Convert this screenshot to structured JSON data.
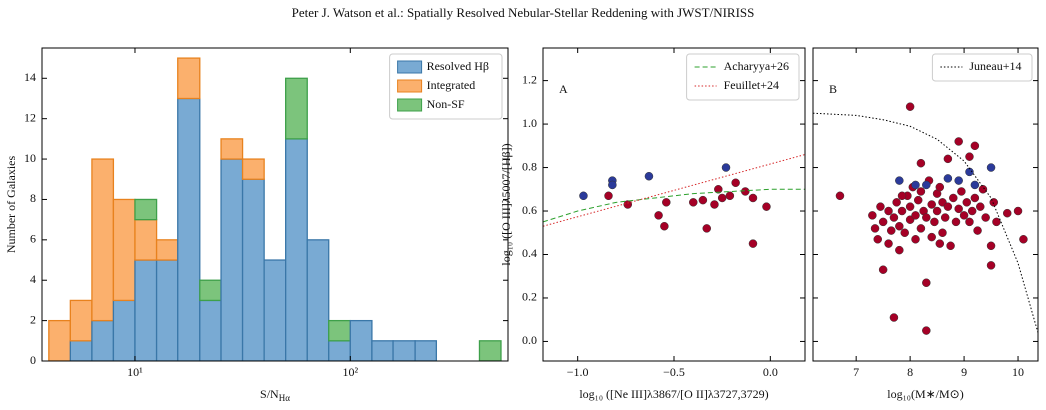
{
  "page_header": "Peter J. Watson et al.: Spatially Resolved Nebular-Stellar Reddening with JWST/NIRISS",
  "chart_data": [
    {
      "type": "histogram",
      "xscale": "log",
      "xlabel": "S/N",
      "xlabel_sub": "Hα",
      "ylabel": "Number of Galaxies",
      "bins": [
        3.98,
        5.01,
        6.31,
        7.94,
        10,
        12.6,
        15.8,
        20,
        25.1,
        31.6,
        39.8,
        50.1,
        63.1,
        79.4,
        100,
        126,
        158,
        200,
        251,
        316,
        398,
        501
      ],
      "series": [
        {
          "name": "Resolved Hβ",
          "color": "#79aad3",
          "edgecolor": "#3a77a8",
          "values": [
            0,
            1,
            2,
            3,
            5,
            5,
            13,
            3,
            10,
            9,
            5,
            11,
            6,
            1,
            2,
            1,
            1,
            1,
            0,
            0,
            0
          ]
        },
        {
          "name": "Integrated",
          "color": "#fbb06d",
          "edgecolor": "#e8821e",
          "values": [
            2,
            2,
            8,
            5,
            2,
            1,
            2,
            0,
            1,
            1,
            0,
            0,
            0,
            0,
            0,
            0,
            0,
            0,
            0,
            0,
            0
          ]
        },
        {
          "name": "Non-SF",
          "color": "#7cc47c",
          "edgecolor": "#3ea04a",
          "values": [
            0,
            0,
            0,
            0,
            1,
            0,
            0,
            1,
            0,
            0,
            0,
            3,
            0,
            1,
            0,
            0,
            0,
            0,
            0,
            0,
            1
          ]
        }
      ],
      "xlim": [
        3.7,
        540
      ],
      "xticks": [
        {
          "value": 10,
          "label": "10¹"
        },
        {
          "value": 100,
          "label": "10²"
        }
      ],
      "ylim": [
        0,
        15.5
      ],
      "yticks": [
        0,
        2,
        4,
        6,
        8,
        10,
        12,
        14
      ],
      "legend": "upper right"
    },
    {
      "type": "scatter",
      "panel_label": "A",
      "xlabel": "log₁₀ ([Ne III]λ3867/[O II]λ3727,3729)",
      "ylabel": "log₁₀ ([O III]λ5007/[Hβ])",
      "series": [
        {
          "color": "#a50026",
          "x": [
            -0.84,
            -0.74,
            -0.58,
            -0.55,
            -0.54,
            -0.4,
            -0.35,
            -0.33,
            -0.29,
            -0.27,
            -0.25,
            -0.21,
            -0.18,
            -0.13,
            -0.09,
            -0.09,
            -0.02
          ],
          "values": [
            0.67,
            0.63,
            0.58,
            0.53,
            0.64,
            0.64,
            0.65,
            0.52,
            0.63,
            0.7,
            0.66,
            0.67,
            0.73,
            0.69,
            0.66,
            0.45,
            0.62
          ]
        },
        {
          "color": "#2b3a9a",
          "x": [
            -0.97,
            -0.82,
            -0.82,
            -0.63,
            -0.23
          ],
          "values": [
            0.67,
            0.74,
            0.72,
            0.76,
            0.8
          ]
        },
        {
          "name": "Acharyya+26",
          "mark": "line",
          "style": "dashed",
          "color": "#2ca02c",
          "x": [
            -1.18,
            -1.0,
            -0.8,
            -0.6,
            -0.4,
            -0.2,
            0,
            0.18
          ],
          "values": [
            0.55,
            0.6,
            0.64,
            0.66,
            0.68,
            0.69,
            0.7,
            0.7
          ]
        },
        {
          "name": "Feuillet+24",
          "mark": "line",
          "style": "dotted",
          "color": "#d62728",
          "x": [
            -1.18,
            0.18
          ],
          "values": [
            0.53,
            0.86
          ]
        }
      ],
      "xlim": [
        -1.18,
        0.18
      ],
      "xticks": [
        {
          "value": -1,
          "label": "−1.0"
        },
        {
          "value": -0.5,
          "label": "−0.5"
        },
        {
          "value": 0,
          "label": "0.0"
        }
      ],
      "ylim": [
        -0.09,
        1.35
      ],
      "yticks": [
        {
          "value": 0,
          "label": "0.0"
        },
        0.2,
        0.4,
        0.6,
        0.8,
        {
          "value": 1,
          "label": "1.0"
        },
        1.2
      ],
      "legend": "upper right"
    },
    {
      "type": "scatter",
      "panel_label": "B",
      "xlabel": "log₁₀(M∗/M⊙)",
      "series": [
        {
          "color": "#a50026",
          "x": [
            6.7,
            7.3,
            7.35,
            7.4,
            7.45,
            7.5,
            7.5,
            7.6,
            7.6,
            7.65,
            7.7,
            7.7,
            7.75,
            7.8,
            7.8,
            7.85,
            7.9,
            7.95,
            8.0,
            8.0,
            8.0,
            8.05,
            8.1,
            8.1,
            8.15,
            8.2,
            8.2,
            8.25,
            8.3,
            8.3,
            8.3,
            8.35,
            8.4,
            8.4,
            8.45,
            8.5,
            8.5,
            8.55,
            8.6,
            8.6,
            8.65,
            8.7,
            8.7,
            8.75,
            8.8,
            8.85,
            8.9,
            8.9,
            8.95,
            9.0,
            9.05,
            9.1,
            9.15,
            9.2,
            9.2,
            9.25,
            9.3,
            9.4,
            9.5,
            9.5,
            9.55,
            9.6,
            9.8,
            10.0,
            10.1,
            9.1,
            8.2,
            7.85,
            8.55,
            9.35
          ],
          "values": [
            0.67,
            0.58,
            0.52,
            0.47,
            0.62,
            0.33,
            0.55,
            0.45,
            0.6,
            0.51,
            0.11,
            0.57,
            0.64,
            0.42,
            0.53,
            0.6,
            0.5,
            0.67,
            1.08,
            0.56,
            0.62,
            0.71,
            0.47,
            0.58,
            0.65,
            0.52,
            0.69,
            0.6,
            0.05,
            0.27,
            0.57,
            0.74,
            0.48,
            0.63,
            0.55,
            0.68,
            0.6,
            0.71,
            0.5,
            0.64,
            0.57,
            0.84,
            0.62,
            0.44,
            0.66,
            0.55,
            0.92,
            0.61,
            0.69,
            0.58,
            0.64,
            0.55,
            0.6,
            0.9,
            0.66,
            0.51,
            0.62,
            0.57,
            0.35,
            0.44,
            0.64,
            0.55,
            0.59,
            0.6,
            0.47,
            0.85,
            0.82,
            0.67,
            0.45,
            0.7
          ]
        },
        {
          "color": "#2b3a9a",
          "x": [
            7.8,
            8.1,
            8.3,
            8.7,
            8.9,
            9.1,
            9.2,
            9.5
          ],
          "values": [
            0.74,
            0.72,
            0.72,
            0.75,
            0.74,
            0.78,
            0.72,
            0.8
          ]
        },
        {
          "name": "Juneau+14",
          "mark": "line",
          "style": "dotted",
          "color": "#000000",
          "x": [
            6.2,
            7,
            7.5,
            8,
            8.5,
            9,
            9.5,
            10,
            10.37
          ],
          "values": [
            1.05,
            1.04,
            1.02,
            0.99,
            0.93,
            0.83,
            0.66,
            0.36,
            0.04
          ]
        }
      ],
      "xlim": [
        6.2,
        10.37
      ],
      "xticks": [
        7,
        8,
        9,
        10
      ],
      "ylim": [
        -0.09,
        1.35
      ],
      "yticks": [
        {
          "value": 0,
          "label": "0.0"
        },
        0.2,
        0.4,
        0.6,
        0.8,
        {
          "value": 1,
          "label": "1.0"
        },
        1.2
      ],
      "show_ytick_labels": false,
      "legend": "upper right"
    }
  ]
}
